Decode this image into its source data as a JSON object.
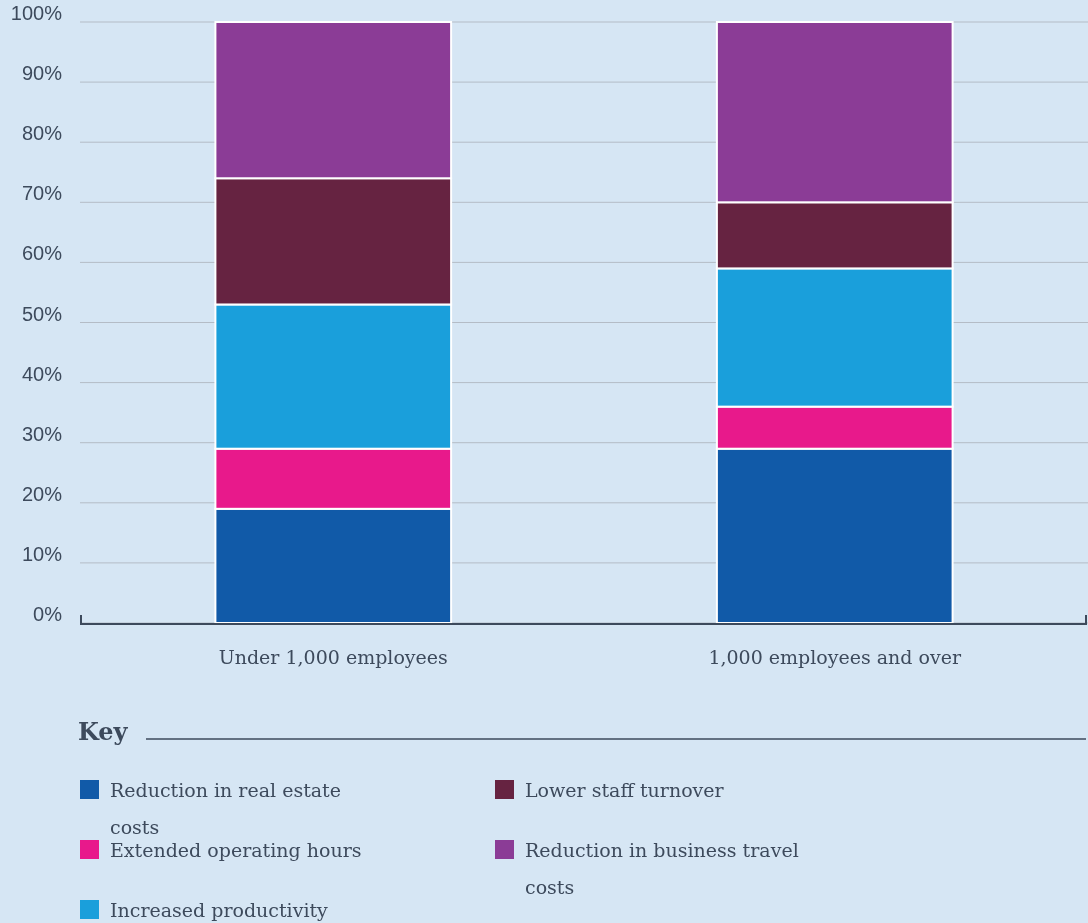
{
  "chart_data": {
    "type": "bar",
    "stacked": true,
    "categories": [
      "Under 1,000 employees",
      "1,000 employees and over"
    ],
    "series": [
      {
        "name": "Reduction in real estate costs",
        "color": "#115aa8",
        "values": [
          19,
          29
        ]
      },
      {
        "name": "Extended operating hours",
        "color": "#e8198b",
        "values": [
          10,
          7
        ]
      },
      {
        "name": "Increased productivity",
        "color": "#1a9fdb",
        "values": [
          24,
          23
        ]
      },
      {
        "name": "Lower staff turnover",
        "color": "#662341",
        "values": [
          21,
          11
        ]
      },
      {
        "name": "Reduction in business travel costs",
        "color": "#8b3c96",
        "values": [
          26,
          30
        ]
      }
    ],
    "ylim": [
      0,
      100
    ],
    "yticks": [
      {
        "value": 0,
        "label": "0%"
      },
      {
        "value": 10,
        "label": "10%"
      },
      {
        "value": 20,
        "label": "20%"
      },
      {
        "value": 30,
        "label": "30%"
      },
      {
        "value": 40,
        "label": "40%"
      },
      {
        "value": 50,
        "label": "50%"
      },
      {
        "value": 60,
        "label": "60%"
      },
      {
        "value": 70,
        "label": "70%"
      },
      {
        "value": 80,
        "label": "80%"
      },
      {
        "value": 90,
        "label": "90%"
      },
      {
        "value": 100,
        "label": "100%"
      }
    ],
    "grid": "y",
    "legend": "bottom",
    "legend_title": "Key"
  }
}
